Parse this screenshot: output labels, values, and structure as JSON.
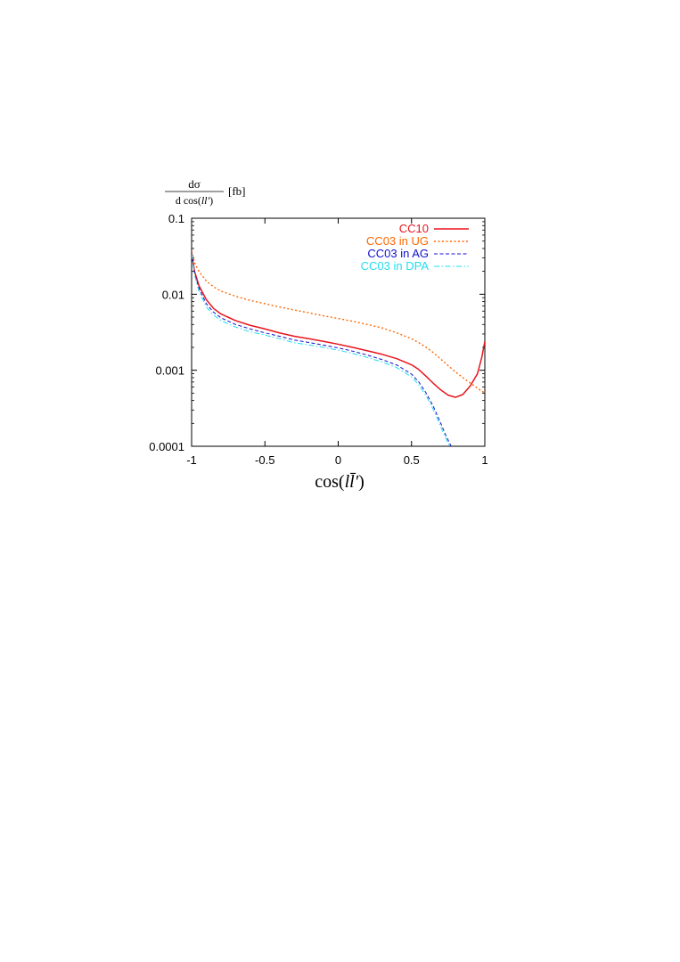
{
  "chart_data": {
    "type": "line",
    "ylabel": {
      "numerator": "dσ",
      "denominator_prefix": "d cos(",
      "denominator_var": "ll′",
      "denominator_suffix": ")",
      "unit": "[fb]"
    },
    "xlabel": {
      "prefix": "cos(",
      "var": "ll̄′",
      "suffix": ")"
    },
    "xlim": [
      -1,
      1
    ],
    "ylim": [
      0.0001,
      0.1
    ],
    "yscale": "log",
    "grid": false,
    "legend_position": "top-right",
    "x_ticks": [
      "-1",
      "-0.5",
      "0",
      "0.5",
      "1"
    ],
    "x_tick_values": [
      -1,
      -0.5,
      0,
      0.5,
      1
    ],
    "y_ticks": [
      "0.1",
      "0.01",
      "0.001",
      "0.0001"
    ],
    "y_tick_values": [
      0.1,
      0.01,
      0.001,
      0.0001
    ],
    "series": [
      {
        "name": "CC10",
        "color": "#e8141e",
        "dash": "solid",
        "x": [
          -1.0,
          -0.98,
          -0.95,
          -0.9,
          -0.85,
          -0.8,
          -0.7,
          -0.6,
          -0.5,
          -0.4,
          -0.3,
          -0.2,
          -0.1,
          0.0,
          0.1,
          0.2,
          0.3,
          0.4,
          0.5,
          0.55,
          0.6,
          0.65,
          0.7,
          0.75,
          0.8,
          0.85,
          0.9,
          0.95,
          0.98,
          1.0
        ],
        "y": [
          0.035,
          0.02,
          0.013,
          0.0085,
          0.0065,
          0.0055,
          0.0045,
          0.0039,
          0.0035,
          0.0031,
          0.0028,
          0.0026,
          0.0024,
          0.0022,
          0.002,
          0.0018,
          0.00162,
          0.00142,
          0.00118,
          0.00102,
          0.00083,
          0.00067,
          0.00055,
          0.00047,
          0.00044,
          0.00048,
          0.00062,
          0.0009,
          0.0015,
          0.0024
        ]
      },
      {
        "name": "CC03 in UG",
        "color": "#ff6600",
        "dash": "dotted",
        "x": [
          -1.0,
          -0.98,
          -0.95,
          -0.9,
          -0.85,
          -0.8,
          -0.7,
          -0.6,
          -0.5,
          -0.4,
          -0.3,
          -0.2,
          -0.1,
          0.0,
          0.1,
          0.2,
          0.3,
          0.4,
          0.5,
          0.55,
          0.6,
          0.65,
          0.7,
          0.75,
          0.8,
          0.85,
          0.9,
          0.95,
          1.0
        ],
        "y": [
          0.037,
          0.026,
          0.02,
          0.015,
          0.0125,
          0.011,
          0.0094,
          0.0083,
          0.0075,
          0.0068,
          0.0062,
          0.0057,
          0.0052,
          0.0048,
          0.0044,
          0.004,
          0.0036,
          0.0031,
          0.0026,
          0.0023,
          0.002,
          0.0017,
          0.0014,
          0.00115,
          0.00095,
          0.0008,
          0.00068,
          0.00058,
          0.0005
        ]
      },
      {
        "name": "CC03 in AG",
        "color": "#1010d0",
        "dash": "dashed",
        "x": [
          -1.0,
          -0.98,
          -0.95,
          -0.9,
          -0.85,
          -0.8,
          -0.7,
          -0.6,
          -0.5,
          -0.4,
          -0.3,
          -0.2,
          -0.1,
          0.0,
          0.1,
          0.2,
          0.3,
          0.4,
          0.5,
          0.55,
          0.6,
          0.65,
          0.7,
          0.73,
          0.755,
          0.77
        ],
        "y": [
          0.035,
          0.019,
          0.012,
          0.0075,
          0.0058,
          0.0049,
          0.004,
          0.0035,
          0.0031,
          0.0028,
          0.0025,
          0.00232,
          0.00214,
          0.00197,
          0.00178,
          0.00158,
          0.00138,
          0.00117,
          0.00089,
          0.0007,
          0.0005,
          0.00033,
          0.0002,
          0.000145,
          0.000115,
          0.0001
        ]
      },
      {
        "name": "CC03 in DPA",
        "color": "#22ddee",
        "dash": "dashdot",
        "x": [
          -1.0,
          -0.98,
          -0.95,
          -0.9,
          -0.85,
          -0.8,
          -0.7,
          -0.6,
          -0.5,
          -0.4,
          -0.3,
          -0.2,
          -0.1,
          0.0,
          0.1,
          0.2,
          0.3,
          0.4,
          0.5,
          0.55,
          0.6,
          0.65,
          0.7,
          0.72,
          0.745,
          0.76
        ],
        "y": [
          0.034,
          0.018,
          0.011,
          0.0068,
          0.0053,
          0.0045,
          0.0037,
          0.0032,
          0.0029,
          0.0026,
          0.0023,
          0.00215,
          0.002,
          0.00184,
          0.00166,
          0.00147,
          0.00128,
          0.00108,
          0.00082,
          0.00064,
          0.00046,
          0.0003,
          0.00018,
          0.000145,
          0.000115,
          0.0001
        ]
      }
    ]
  }
}
